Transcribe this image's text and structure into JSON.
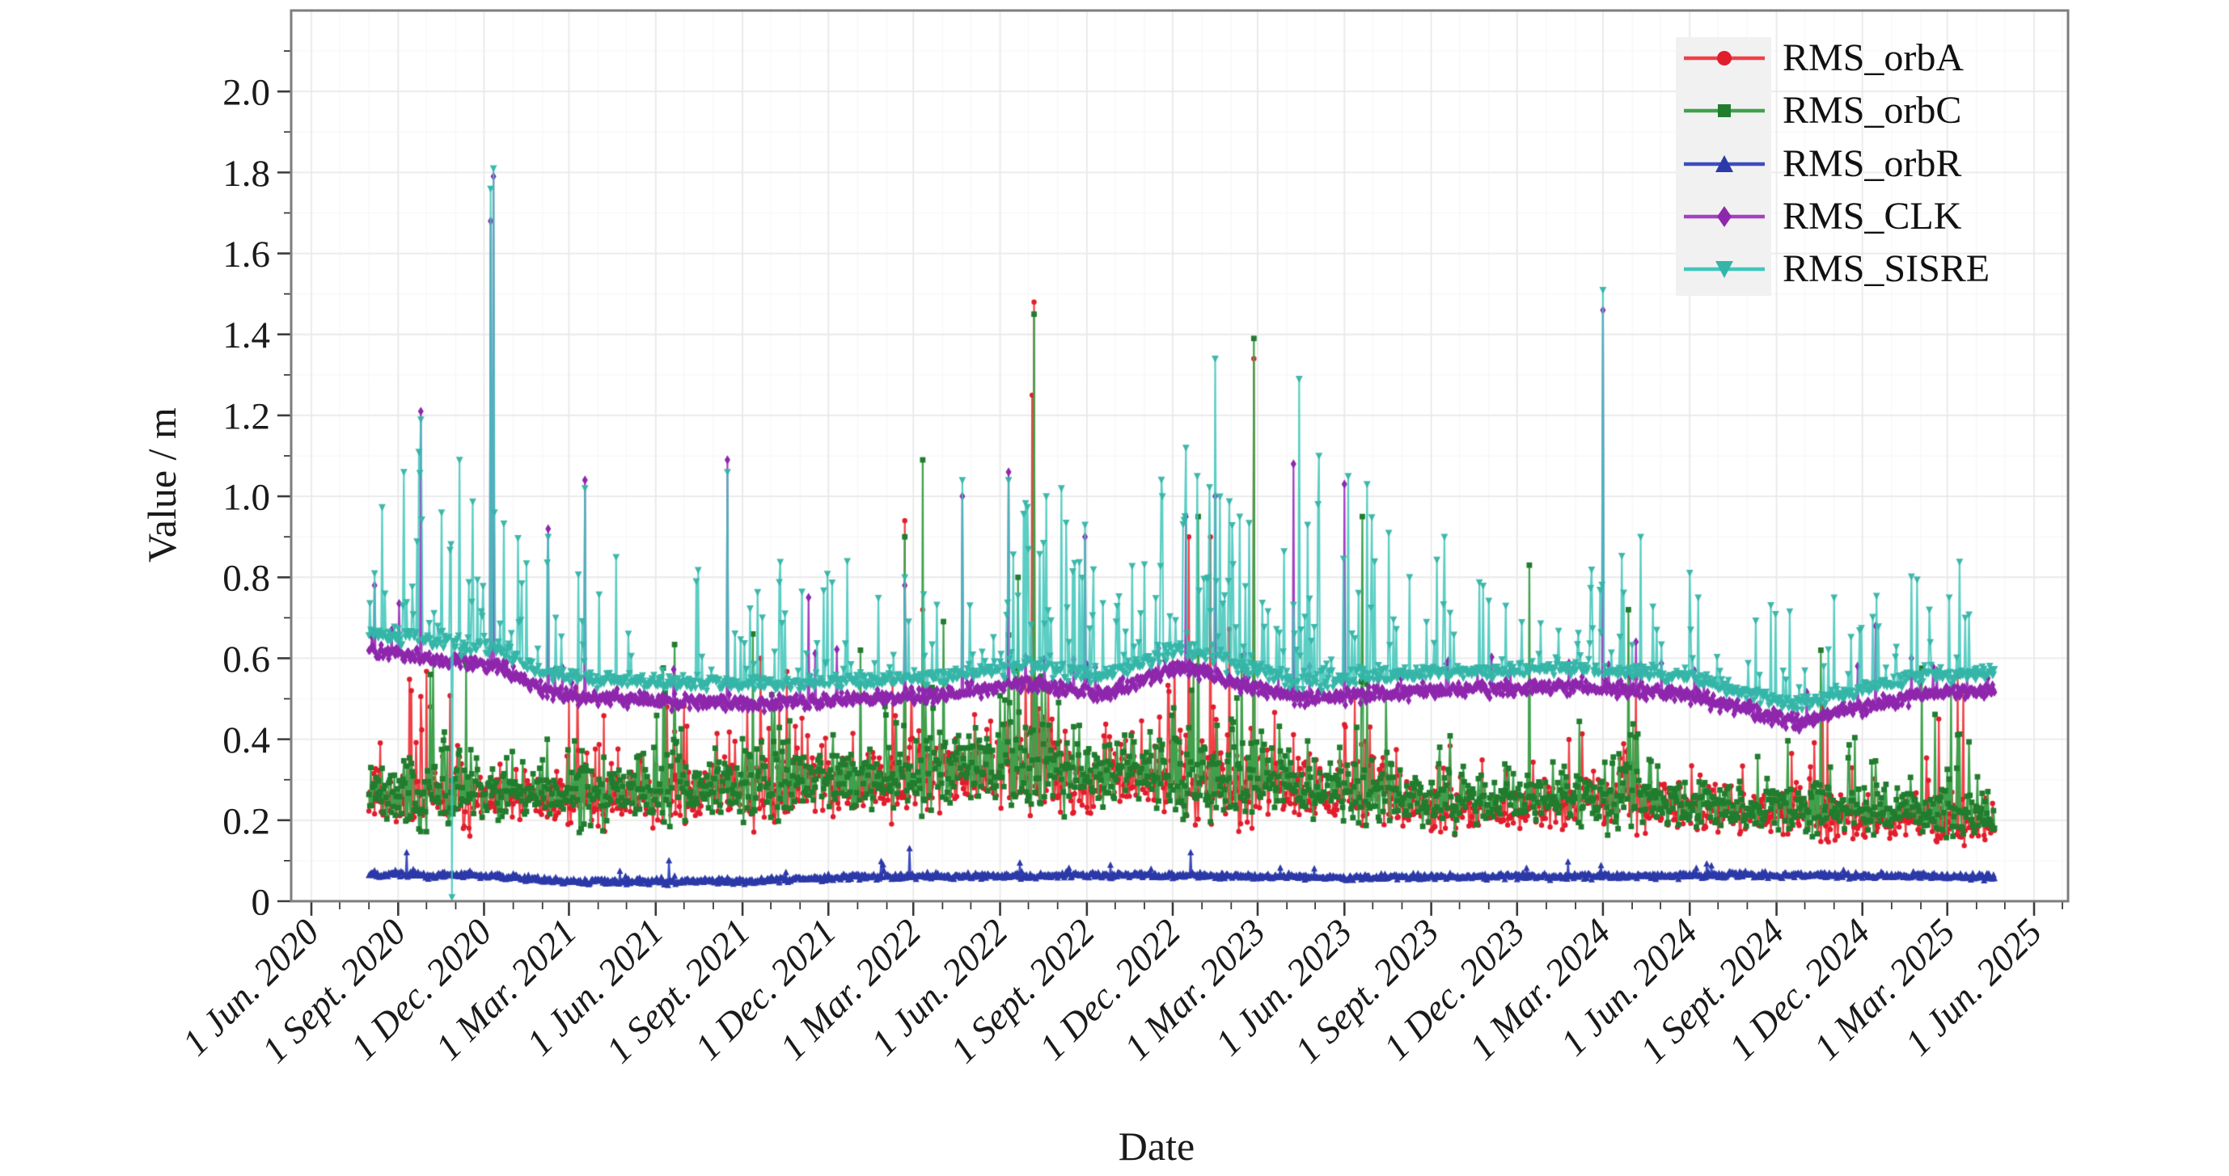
{
  "figure": {
    "background": "#ffffff"
  },
  "axes": {
    "x_label": "Date",
    "y_label": "Value / m",
    "ylim": [
      0,
      2.2
    ],
    "y_ticks": [
      {
        "label": "0",
        "value": 0.0
      },
      {
        "label": "0.2",
        "value": 0.2
      },
      {
        "label": "0.4",
        "value": 0.4
      },
      {
        "label": "0.6",
        "value": 0.6
      },
      {
        "label": "0.8",
        "value": 0.8
      },
      {
        "label": "1.0",
        "value": 1.0
      },
      {
        "label": "1.2",
        "value": 1.2
      },
      {
        "label": "1.4",
        "value": 1.4
      },
      {
        "label": "1.6",
        "value": 1.6
      },
      {
        "label": "1.8",
        "value": 1.8
      },
      {
        "label": "2.0",
        "value": 2.0
      }
    ],
    "y_minor_step": 0.1,
    "x_ticks": [
      {
        "label": "1 Jun. 2020",
        "month_offset": 0
      },
      {
        "label": "1 Sept. 2020",
        "month_offset": 3
      },
      {
        "label": "1 Dec. 2020",
        "month_offset": 6
      },
      {
        "label": "1 Mar. 2021",
        "month_offset": 9
      },
      {
        "label": "1 Jun. 2021",
        "month_offset": 12
      },
      {
        "label": "1 Sept. 2021",
        "month_offset": 15
      },
      {
        "label": "1 Dec. 2021",
        "month_offset": 18
      },
      {
        "label": "1 Mar. 2022",
        "month_offset": 21
      },
      {
        "label": "1 Jun. 2022",
        "month_offset": 24
      },
      {
        "label": "1 Sept. 2022",
        "month_offset": 27
      },
      {
        "label": "1 Dec. 2022",
        "month_offset": 30
      },
      {
        "label": "1 Mar. 2023",
        "month_offset": 33
      },
      {
        "label": "1 Jun. 2023",
        "month_offset": 36
      },
      {
        "label": "1 Sept. 2023",
        "month_offset": 39
      },
      {
        "label": "1 Dec. 2023",
        "month_offset": 42
      },
      {
        "label": "1 Mar. 2024",
        "month_offset": 45
      },
      {
        "label": "1 Jun. 2024",
        "month_offset": 48
      },
      {
        "label": "1 Sept. 2024",
        "month_offset": 51
      },
      {
        "label": "1 Dec. 2024",
        "month_offset": 54
      },
      {
        "label": "1 Mar. 2025",
        "month_offset": 57
      },
      {
        "label": "1 Jun. 2025",
        "month_offset": 60
      }
    ],
    "x_minor_step_months": 1,
    "grid": {
      "major_color": "#e9e9e9",
      "minor_color": "#f6f6f6",
      "frame_color": "#7d7d7d",
      "tick_color": "#3c3c3c"
    }
  },
  "legend": {
    "position": "top-right",
    "items": [
      {
        "label": "RMS_orbA",
        "series": 0
      },
      {
        "label": "RMS_orbC",
        "series": 1
      },
      {
        "label": "RMS_orbR",
        "series": 2
      },
      {
        "label": "RMS_CLK",
        "series": 3
      },
      {
        "label": "RMS_SISRE",
        "series": 4
      }
    ]
  },
  "chart_data": {
    "type": "line",
    "title": "",
    "xlabel": "Date",
    "ylabel": "Value / m",
    "ylim": [
      0,
      2.2
    ],
    "x_start_date": "2020-06-01",
    "data_start": "2020-08-01",
    "data_end": "2025-04-20",
    "step_days": 1,
    "series": [
      {
        "name": "RMS_orbA",
        "marker": "circle",
        "marker_size": 3.2,
        "line_color": "#ef4146",
        "marker_color": "#e01d2c",
        "line_alpha": 1.0,
        "mode": "lognormal",
        "sigma": 0.3,
        "seed": 11,
        "spike_prob": 0.05,
        "spike_mag": 0.2,
        "spike_pow": 1.2,
        "clip_min": 0.09,
        "base": [
          [
            "2020-08-01",
            0.26
          ],
          [
            "2020-12-01",
            0.24
          ],
          [
            "2021-03-01",
            0.26
          ],
          [
            "2021-08-01",
            0.27
          ],
          [
            "2022-01-01",
            0.28
          ],
          [
            "2022-06-15",
            0.33
          ],
          [
            "2022-09-01",
            0.3
          ],
          [
            "2022-12-15",
            0.31
          ],
          [
            "2023-03-01",
            0.28
          ],
          [
            "2023-07-01",
            0.26
          ],
          [
            "2023-10-01",
            0.22
          ],
          [
            "2024-03-15",
            0.25
          ],
          [
            "2024-07-01",
            0.22
          ],
          [
            "2024-10-15",
            0.21
          ],
          [
            "2025-01-15",
            0.2
          ],
          [
            "2025-04-20",
            0.2
          ]
        ],
        "bursts": [
          [
            "2020-09-01",
            "2020-11-20"
          ],
          [
            "2021-02-20",
            "2021-04-10"
          ],
          [
            "2021-05-20",
            "2021-07-05"
          ],
          [
            "2021-09-01",
            "2021-10-25"
          ],
          [
            "2022-02-05",
            "2022-04-05"
          ],
          [
            "2022-06-01",
            "2022-08-20"
          ],
          [
            "2022-11-10",
            "2023-02-25"
          ],
          [
            "2023-05-25",
            "2023-07-20"
          ],
          [
            "2023-09-01",
            "2023-10-05"
          ],
          [
            "2024-03-01",
            "2024-04-20"
          ],
          [
            "2024-10-01",
            "2024-11-05"
          ],
          [
            "2025-02-01",
            "2025-03-20"
          ]
        ],
        "spikes": [
          [
            "2020-09-15",
            0.52
          ],
          [
            "2020-10-05",
            0.48
          ],
          [
            "2021-03-10",
            0.56
          ],
          [
            "2021-09-20",
            0.6
          ],
          [
            "2022-02-20",
            0.94
          ],
          [
            "2022-03-11",
            0.72
          ],
          [
            "2022-07-05",
            1.25
          ],
          [
            "2022-07-07",
            1.48
          ],
          [
            "2022-12-18",
            0.9
          ],
          [
            "2023-01-10",
            0.9
          ],
          [
            "2023-02-25",
            1.34
          ],
          [
            "2024-04-05",
            0.55
          ],
          [
            "2024-10-20",
            0.48
          ],
          [
            "2025-02-20",
            0.45
          ]
        ]
      },
      {
        "name": "RMS_orbC",
        "marker": "square",
        "marker_size": 3.4,
        "line_color": "#3fa14c",
        "marker_color": "#217c2e",
        "line_alpha": 1.0,
        "mode": "lognormal",
        "sigma": 0.3,
        "seed": 22,
        "spike_prob": 0.05,
        "spike_mag": 0.2,
        "spike_pow": 1.2,
        "clip_min": 0.09,
        "base": [
          [
            "2020-08-01",
            0.27
          ],
          [
            "2020-12-01",
            0.26
          ],
          [
            "2021-03-01",
            0.27
          ],
          [
            "2021-08-01",
            0.28
          ],
          [
            "2022-01-01",
            0.3
          ],
          [
            "2022-06-15",
            0.34
          ],
          [
            "2022-09-01",
            0.31
          ],
          [
            "2022-12-15",
            0.32
          ],
          [
            "2023-03-01",
            0.3
          ],
          [
            "2023-07-01",
            0.27
          ],
          [
            "2023-10-01",
            0.24
          ],
          [
            "2024-03-15",
            0.26
          ],
          [
            "2024-07-01",
            0.23
          ],
          [
            "2024-10-15",
            0.23
          ],
          [
            "2025-01-15",
            0.22
          ],
          [
            "2025-04-20",
            0.21
          ]
        ],
        "bursts": [
          [
            "2020-09-01",
            "2020-11-20"
          ],
          [
            "2021-02-20",
            "2021-04-10"
          ],
          [
            "2021-05-20",
            "2021-07-05"
          ],
          [
            "2021-09-01",
            "2021-10-25"
          ],
          [
            "2022-02-05",
            "2022-04-05"
          ],
          [
            "2022-06-01",
            "2022-08-20"
          ],
          [
            "2022-11-10",
            "2023-02-25"
          ],
          [
            "2023-05-25",
            "2023-07-20"
          ],
          [
            "2023-09-01",
            "2023-10-05"
          ],
          [
            "2024-03-01",
            "2024-04-20"
          ],
          [
            "2024-10-01",
            "2024-11-05"
          ],
          [
            "2025-02-01",
            "2025-03-20"
          ]
        ],
        "spikes": [
          [
            "2020-10-05",
            0.56
          ],
          [
            "2021-09-12",
            0.66
          ],
          [
            "2022-01-04",
            0.62
          ],
          [
            "2022-02-20",
            0.9
          ],
          [
            "2022-03-11",
            1.09
          ],
          [
            "2022-06-20",
            0.8
          ],
          [
            "2022-07-07",
            1.45
          ],
          [
            "2022-12-28",
            0.95
          ],
          [
            "2023-02-25",
            1.39
          ],
          [
            "2023-06-20",
            0.95
          ],
          [
            "2023-12-14",
            0.83
          ],
          [
            "2024-03-28",
            0.72
          ],
          [
            "2024-10-18",
            0.62
          ],
          [
            "2025-03-05",
            0.52
          ]
        ]
      },
      {
        "name": "RMS_orbR",
        "marker": "triangle-up",
        "marker_size": 4.0,
        "line_color": "#3d4cbe",
        "marker_color": "#2c39a8",
        "line_alpha": 1.0,
        "mode": "normal",
        "noise": 0.009,
        "seed": 33,
        "spike_prob": 0.03,
        "spike_mag": 0.035,
        "spike_pow": 1.5,
        "clip_min": 0.02,
        "base": [
          [
            "2020-08-01",
            0.068
          ],
          [
            "2020-12-15",
            0.062
          ],
          [
            "2021-03-01",
            0.048
          ],
          [
            "2021-09-01",
            0.05
          ],
          [
            "2022-01-01",
            0.06
          ],
          [
            "2022-12-01",
            0.065
          ],
          [
            "2023-06-01",
            0.058
          ],
          [
            "2024-01-01",
            0.062
          ],
          [
            "2024-08-01",
            0.065
          ],
          [
            "2025-04-20",
            0.06
          ]
        ],
        "bursts": [],
        "spikes": [
          [
            "2020-09-10",
            0.12
          ],
          [
            "2021-06-15",
            0.1
          ],
          [
            "2022-02-25",
            0.13
          ],
          [
            "2022-12-20",
            0.12
          ]
        ]
      },
      {
        "name": "RMS_CLK",
        "marker": "diamond",
        "marker_size": 4.4,
        "line_color": "#a540c2",
        "marker_color": "#8f27ad",
        "line_alpha": 1.0,
        "mode": "normal",
        "noise": 0.022,
        "seed": 44,
        "spike_prob": 0.05,
        "spike_mag": 0.12,
        "spike_pow": 1.5,
        "clip_min": 0.3,
        "base": [
          [
            "2020-08-01",
            0.62
          ],
          [
            "2020-10-01",
            0.6
          ],
          [
            "2020-12-15",
            0.58
          ],
          [
            "2021-02-01",
            0.52
          ],
          [
            "2021-04-01",
            0.5
          ],
          [
            "2021-10-01",
            0.49
          ],
          [
            "2022-01-01",
            0.5
          ],
          [
            "2022-04-01",
            0.51
          ],
          [
            "2022-07-01",
            0.54
          ],
          [
            "2022-09-15",
            0.51
          ],
          [
            "2022-12-15",
            0.58
          ],
          [
            "2023-02-01",
            0.54
          ],
          [
            "2023-04-15",
            0.5
          ],
          [
            "2023-09-01",
            0.52
          ],
          [
            "2024-02-01",
            0.53
          ],
          [
            "2024-06-01",
            0.51
          ],
          [
            "2024-09-20",
            0.44
          ],
          [
            "2024-11-15",
            0.47
          ],
          [
            "2025-02-01",
            0.51
          ],
          [
            "2025-04-20",
            0.52
          ]
        ],
        "bursts": [],
        "spikes": [
          [
            "2020-08-07",
            0.78
          ],
          [
            "2020-09-25",
            1.21
          ],
          [
            "2020-12-08",
            1.68
          ],
          [
            "2020-12-11",
            1.79
          ],
          [
            "2021-02-07",
            0.92
          ],
          [
            "2021-03-18",
            1.04
          ],
          [
            "2021-08-16",
            1.09
          ],
          [
            "2021-11-10",
            0.75
          ],
          [
            "2022-02-20",
            0.78
          ],
          [
            "2022-04-22",
            1.0
          ],
          [
            "2022-06-10",
            1.06
          ],
          [
            "2022-08-30",
            0.9
          ],
          [
            "2022-12-15",
            0.95
          ],
          [
            "2023-01-15",
            1.0
          ],
          [
            "2023-04-08",
            1.08
          ],
          [
            "2023-06-01",
            1.03
          ],
          [
            "2024-03-01",
            1.46
          ],
          [
            "2024-12-15",
            0.68
          ]
        ]
      },
      {
        "name": "RMS_SISRE",
        "marker": "triangle-down",
        "marker_size": 4.4,
        "line_color": "#40c6ba",
        "marker_color": "#35b5a8",
        "line_alpha": 0.85,
        "mode": "normal",
        "noise": 0.02,
        "seed": 55,
        "spike_prob": 0.16,
        "spike_mag": 0.3,
        "spike_pow": 1.8,
        "clip_min": 0.34,
        "base": [
          [
            "2020-08-01",
            0.665
          ],
          [
            "2020-10-01",
            0.645
          ],
          [
            "2020-12-15",
            0.625
          ],
          [
            "2021-02-01",
            0.565
          ],
          [
            "2021-04-01",
            0.545
          ],
          [
            "2021-10-01",
            0.535
          ],
          [
            "2022-01-01",
            0.545
          ],
          [
            "2022-04-01",
            0.555
          ],
          [
            "2022-07-01",
            0.585
          ],
          [
            "2022-09-15",
            0.555
          ],
          [
            "2022-12-15",
            0.625
          ],
          [
            "2023-02-01",
            0.585
          ],
          [
            "2023-04-15",
            0.545
          ],
          [
            "2023-09-01",
            0.565
          ],
          [
            "2024-02-01",
            0.575
          ],
          [
            "2024-06-01",
            0.555
          ],
          [
            "2024-09-20",
            0.485
          ],
          [
            "2024-11-15",
            0.515
          ],
          [
            "2025-02-01",
            0.555
          ],
          [
            "2025-04-20",
            0.565
          ]
        ],
        "bursts": [
          [
            "2020-09-01",
            "2021-01-10"
          ],
          [
            "2022-06-01",
            "2022-09-10"
          ],
          [
            "2022-11-10",
            "2023-07-20"
          ]
        ],
        "spikes": [
          [
            "2020-08-07",
            0.81
          ],
          [
            "2020-09-25",
            1.19
          ],
          [
            "2020-10-28",
            0.01
          ],
          [
            "2020-11-05",
            1.09
          ],
          [
            "2020-12-08",
            1.76
          ],
          [
            "2020-12-11",
            1.81
          ],
          [
            "2021-02-07",
            0.9
          ],
          [
            "2021-03-18",
            1.02
          ],
          [
            "2021-04-20",
            0.85
          ],
          [
            "2021-08-16",
            1.06
          ],
          [
            "2021-12-21",
            0.84
          ],
          [
            "2022-02-20",
            0.8
          ],
          [
            "2022-04-22",
            1.04
          ],
          [
            "2022-06-10",
            1.04
          ],
          [
            "2022-07-20",
            1.0
          ],
          [
            "2022-08-05",
            1.02
          ],
          [
            "2022-08-30",
            0.93
          ],
          [
            "2022-11-20",
            1.0
          ],
          [
            "2022-12-15",
            1.12
          ],
          [
            "2022-12-27",
            1.05
          ],
          [
            "2023-01-15",
            1.34
          ],
          [
            "2023-02-10",
            0.95
          ],
          [
            "2023-04-14",
            1.29
          ],
          [
            "2023-05-05",
            1.1
          ],
          [
            "2023-06-05",
            1.05
          ],
          [
            "2023-06-25",
            1.03
          ],
          [
            "2023-07-18",
            0.91
          ],
          [
            "2023-09-15",
            0.9
          ],
          [
            "2024-03-01",
            1.51
          ],
          [
            "2024-04-10",
            0.9
          ],
          [
            "2024-06-10",
            0.75
          ],
          [
            "2024-11-01",
            0.75
          ],
          [
            "2025-02-10",
            0.72
          ],
          [
            "2025-03-20",
            0.7
          ]
        ]
      }
    ]
  }
}
